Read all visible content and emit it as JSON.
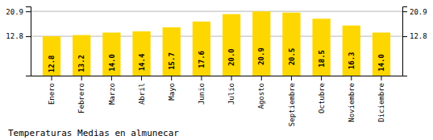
{
  "chart_data": {
    "type": "bar",
    "title": "Temperaturas Medias en almunecar",
    "categories": [
      "Enero",
      "Febrero",
      "Marzo",
      "Abril",
      "Mayo",
      "Junio",
      "Julio",
      "Agosto",
      "Septiembre",
      "Octubre",
      "Noviembre",
      "Diciembre"
    ],
    "values": [
      12.8,
      13.2,
      14.0,
      14.4,
      15.7,
      17.6,
      20.0,
      20.9,
      20.5,
      18.5,
      16.3,
      14.0
    ],
    "value_labels": [
      "12.8",
      "13.2",
      "14.0",
      "14.4",
      "15.7",
      "17.6",
      "20.0",
      "20.9",
      "20.5",
      "18.5",
      "16.3",
      "14.0"
    ],
    "color": "#FFD700",
    "ylim": [
      0,
      22.5
    ],
    "yticks": [
      12.8,
      20.9
    ],
    "grid": true,
    "data_labels": true
  }
}
